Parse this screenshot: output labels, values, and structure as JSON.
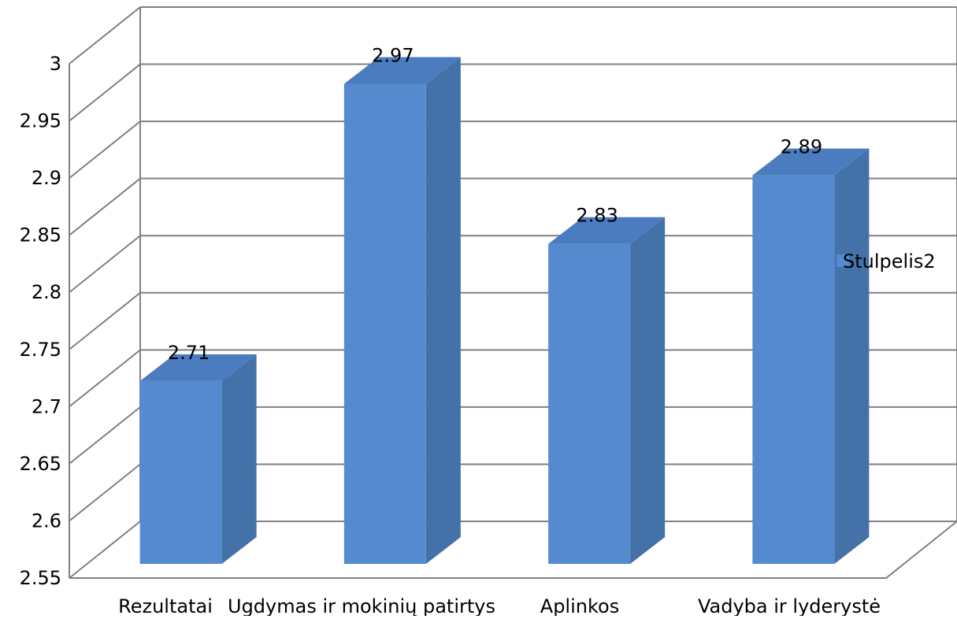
{
  "chart_data": {
    "type": "bar",
    "title": "",
    "xlabel": "",
    "ylabel": "",
    "categories": [
      "Rezultatai",
      "Ugdymas ir mokinių patirtys",
      "Aplinkos",
      "Vadyba ir lyderystė"
    ],
    "series": [
      {
        "name": "Stulpelis2",
        "values": [
          2.71,
          2.97,
          2.83,
          2.89
        ]
      }
    ],
    "ylim": [
      2.55,
      3
    ],
    "yticks": [
      2.55,
      2.6,
      2.65,
      2.7,
      2.75,
      2.8,
      2.85,
      2.9,
      2.95,
      3
    ],
    "ytick_labels": [
      "2.55",
      "2.6",
      "2.65",
      "2.7",
      "2.75",
      "2.8",
      "2.85",
      "2.9",
      "2.95",
      "3"
    ],
    "data_labels": [
      "2.71",
      "2.97",
      "2.83",
      "2.89"
    ],
    "grid": true,
    "legend_position": "right",
    "colors": {
      "bar_front": "#558ACF",
      "bar_side": "#4472A8",
      "bar_top": "#4A7CBF",
      "grid": "#808080"
    }
  }
}
